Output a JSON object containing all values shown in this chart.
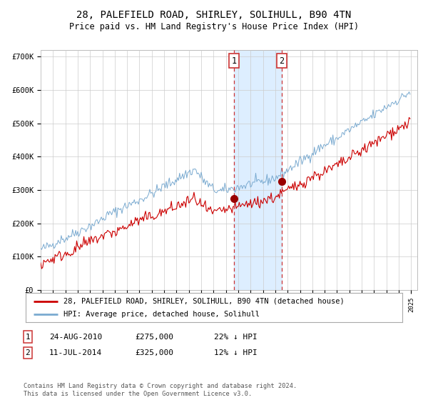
{
  "title": "28, PALEFIELD ROAD, SHIRLEY, SOLIHULL, B90 4TN",
  "subtitle": "Price paid vs. HM Land Registry's House Price Index (HPI)",
  "ylim": [
    0,
    720000
  ],
  "yticks": [
    0,
    100000,
    200000,
    300000,
    400000,
    500000,
    600000,
    700000
  ],
  "ytick_labels": [
    "£0",
    "£100K",
    "£200K",
    "£300K",
    "£400K",
    "£500K",
    "£600K",
    "£700K"
  ],
  "xlim_start": 1995.0,
  "xlim_end": 2025.5,
  "marker1_x": 2010.65,
  "marker1_y": 275000,
  "marker2_x": 2014.53,
  "marker2_y": 325000,
  "shade_start": 2010.65,
  "shade_end": 2014.53,
  "line1_color": "#cc0000",
  "line2_color": "#7aaad0",
  "shade_color": "#ddeeff",
  "marker_color": "#990000",
  "grid_color": "#cccccc",
  "legend_label1": "28, PALEFIELD ROAD, SHIRLEY, SOLIHULL, B90 4TN (detached house)",
  "legend_label2": "HPI: Average price, detached house, Solihull",
  "table_row1": [
    "1",
    "24-AUG-2010",
    "£275,000",
    "22% ↓ HPI"
  ],
  "table_row2": [
    "2",
    "11-JUL-2014",
    "£325,000",
    "12% ↓ HPI"
  ],
  "footer": "Contains HM Land Registry data © Crown copyright and database right 2024.\nThis data is licensed under the Open Government Licence v3.0.",
  "background_color": "#ffffff"
}
